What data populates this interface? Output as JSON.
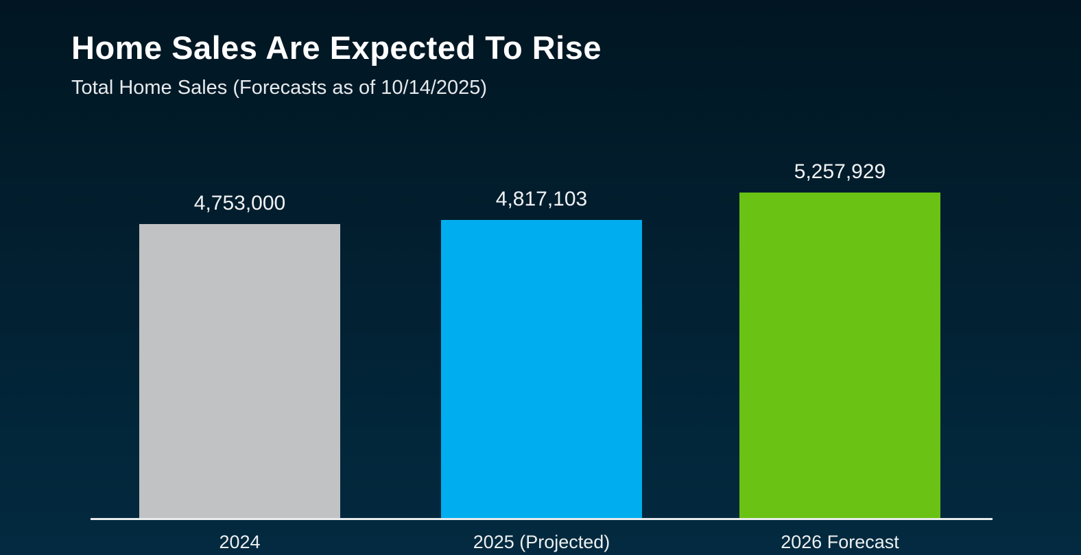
{
  "chart_data": {
    "type": "bar",
    "title": "Home Sales Are Expected To Rise",
    "subtitle": "Total Home Sales (Forecasts as of 10/14/2025)",
    "categories": [
      "2024",
      "2025 (Projected)",
      "2026 Forecast"
    ],
    "series": [
      {
        "name": "Total Home Sales",
        "values": [
          4753000,
          4817103,
          5257929
        ]
      }
    ],
    "values": [
      4753000,
      4817103,
      5257929
    ],
    "value_labels": [
      "4,753,000",
      "4,817,103",
      "5,257,929"
    ],
    "bar_colors": [
      "#C0C2C4",
      "#00AEEF",
      "#6AC214"
    ],
    "ylim": [
      0,
      5257929
    ],
    "grid": false,
    "legend_position": "none",
    "axis_line_color": "#E9ECEC",
    "title_color": "#FFFFFF",
    "subtitle_color": "#E6EAED",
    "background_gradient": [
      "#011622",
      "#032A40"
    ]
  }
}
